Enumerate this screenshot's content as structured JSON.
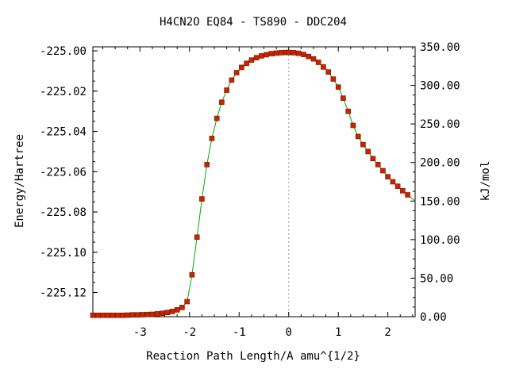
{
  "chart_data": {
    "type": "line",
    "title": "H4CN2O   EQ84 - TS890 - DDC204",
    "xlabel": "Reaction Path Length/A amu^{1/2}",
    "ylabel": "Energy/Hartree",
    "y2label": "kJ/mol",
    "xlim": [
      -3.95,
      2.55
    ],
    "ylim": [
      -225.132,
      -224.998
    ],
    "y2lim": [
      0,
      350
    ],
    "x_ticks": [
      -3,
      -2,
      -1,
      0,
      1,
      2
    ],
    "x_tick_labels": [
      "-3",
      "-2",
      "-1",
      "0",
      "1",
      "2"
    ],
    "y_ticks": [
      -225.0,
      -225.02,
      -225.04,
      -225.06,
      -225.08,
      -225.1,
      -225.12
    ],
    "y_tick_labels": [
      "-225.00",
      "-225.02",
      "-225.04",
      "-225.06",
      "-225.08",
      "-225.10",
      "-225.12"
    ],
    "y2_ticks": [
      0,
      50,
      100,
      150,
      200,
      250,
      300,
      350
    ],
    "y2_tick_labels": [
      "0.00",
      "50.00",
      "100.00",
      "150.00",
      "200.00",
      "250.00",
      "300.00",
      "350.00"
    ],
    "ts_x": 0,
    "colors": {
      "curve": "#00aa00",
      "marker": "#cc2200",
      "marker_edge": "#6b1500"
    },
    "series": [
      {
        "x": [
          -3.95,
          -3.85,
          -3.75,
          -3.65,
          -3.55,
          -3.45,
          -3.35,
          -3.25,
          -3.15,
          -3.05,
          -2.95,
          -2.85,
          -2.75,
          -2.65,
          -2.55,
          -2.45,
          -2.35,
          -2.25,
          -2.15,
          -2.05,
          -1.95,
          -1.85,
          -1.75,
          -1.65,
          -1.55,
          -1.45,
          -1.35,
          -1.25,
          -1.15,
          -1.05,
          -0.95,
          -0.85,
          -0.75,
          -0.65,
          -0.55,
          -0.45,
          -0.35,
          -0.25,
          -0.15,
          -0.05,
          0.0,
          0.1,
          0.2,
          0.3,
          0.4,
          0.5,
          0.6,
          0.7,
          0.8,
          0.9,
          1.0,
          1.1,
          1.2,
          1.3,
          1.4,
          1.5,
          1.6,
          1.7,
          1.8,
          1.9,
          2.0,
          2.1,
          2.2,
          2.3,
          2.4
        ],
        "y": [
          -225.1313,
          -225.1313,
          -225.1313,
          -225.1313,
          -225.1313,
          -225.1313,
          -225.1313,
          -225.1312,
          -225.1311,
          -225.1311,
          -225.131,
          -225.1309,
          -225.1308,
          -225.1306,
          -225.1303,
          -225.1299,
          -225.1294,
          -225.1286,
          -225.1274,
          -225.1245,
          -225.1112,
          -225.0925,
          -225.0735,
          -225.0565,
          -225.0435,
          -225.0335,
          -225.0255,
          -225.0195,
          -225.0145,
          -225.0108,
          -225.0082,
          -225.0062,
          -225.0046,
          -225.0034,
          -225.0025,
          -225.0019,
          -225.0014,
          -225.0011,
          -225.0009,
          -225.0008,
          -225.0008,
          -225.0009,
          -225.0012,
          -225.0018,
          -225.0028,
          -225.004,
          -225.0057,
          -225.008,
          -225.0105,
          -225.014,
          -225.018,
          -225.0235,
          -225.03,
          -225.037,
          -225.0425,
          -225.0465,
          -225.05,
          -225.0535,
          -225.0565,
          -225.0595,
          -225.0625,
          -225.065,
          -225.0672,
          -225.0695,
          -225.0715
        ]
      }
    ]
  }
}
